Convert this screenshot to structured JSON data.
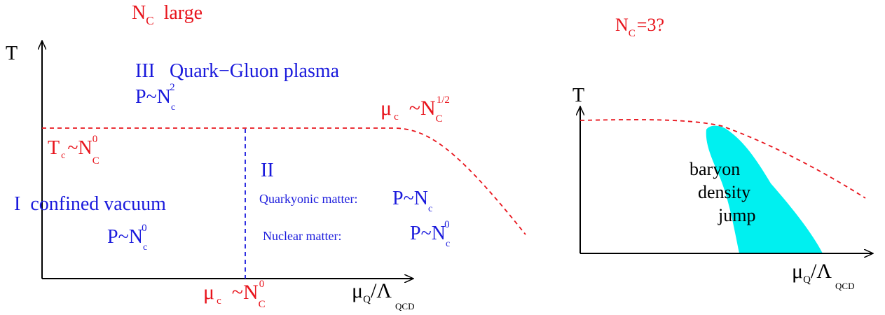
{
  "colors": {
    "label": "#e8141c",
    "region": "#1a1adc",
    "axis": "#000000",
    "shaded": "#00f0f0"
  },
  "left_panel": {
    "title": {
      "main": "N",
      "sub": "C",
      "rest": "large"
    },
    "y_axis_label": "T",
    "x_axis_label": {
      "main": "μ",
      "sub1": "Q",
      "slash": "/Λ",
      "sub2": "QCD"
    },
    "regions": {
      "iii_title": "III   Quark−Gluon plasma",
      "iii_pressure": {
        "main": "P~N",
        "sub": "c",
        "sup": "2"
      },
      "i_title": "I  confined vacuum",
      "i_pressure": {
        "main": "P~N",
        "sub": "c",
        "sup": "0"
      },
      "ii_title": "II",
      "quarkyonic_label": "Quarkyonic matter:",
      "quarkyonic_pressure": {
        "main": "P~N",
        "sub": "c"
      },
      "nuclear_label": "Nuclear matter:",
      "nuclear_pressure": {
        "main": "P~N",
        "sub": "c",
        "sup": "0"
      }
    },
    "annotations": {
      "tc": {
        "main": "T",
        "sub": "c",
        "rest": "~N",
        "sub2": "C",
        "sup2": "0"
      },
      "mu_c_upper": {
        "main": "μ",
        "sub": "c",
        "rest": "~N",
        "sub2": "C",
        "sup2": "1/2"
      },
      "mu_c_lower": {
        "main": "μ",
        "sub": "c",
        "rest": "~N",
        "sub2": "C",
        "sup2": "0"
      }
    }
  },
  "right_panel": {
    "title": {
      "main": "N",
      "sub": "C",
      "rest": "=3?"
    },
    "y_axis_label": "T",
    "x_axis_label": {
      "main": "μ",
      "sub1": "Q",
      "slash": "/Λ",
      "sub2": "QCD"
    },
    "shaded_label_lines": [
      "baryon",
      "density",
      "jump"
    ]
  }
}
